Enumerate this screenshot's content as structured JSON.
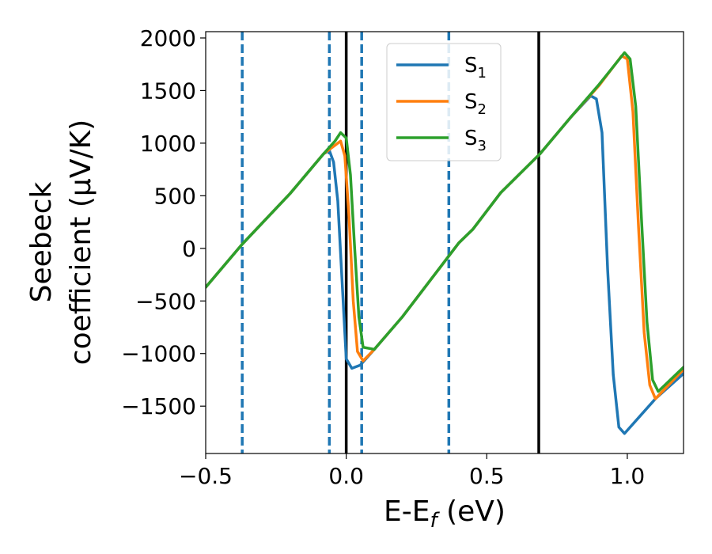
{
  "chart_data": {
    "type": "line",
    "xlabel": "E-E",
    "xlabel_sub": "f",
    "xlabel_unit": " (eV)",
    "ylabel_line1": "Seebeck",
    "ylabel_line2": "coefficient  (μV/K)",
    "xlim": [
      -0.5,
      1.2
    ],
    "ylim": [
      -1950,
      2060
    ],
    "xticks": [
      -0.5,
      0.0,
      0.5,
      1.0
    ],
    "xtick_labels": [
      "−0.5",
      "0.0",
      "0.5",
      "1.0"
    ],
    "yticks": [
      -1500,
      -1000,
      -500,
      0,
      500,
      1000,
      1500,
      2000
    ],
    "ytick_labels": [
      "−1500",
      "−1000",
      "−500",
      "0",
      "500",
      "1000",
      "1500",
      "2000"
    ],
    "grid": false,
    "legend_position": "top-center",
    "series": [
      {
        "name": "S",
        "sub": "1",
        "color": "#1f77b4",
        "points": [
          [
            -0.5,
            -370
          ],
          [
            -0.37,
            40
          ],
          [
            -0.2,
            520
          ],
          [
            -0.08,
            900
          ],
          [
            -0.06,
            930
          ],
          [
            -0.045,
            820
          ],
          [
            -0.03,
            450
          ],
          [
            -0.015,
            -300
          ],
          [
            0.0,
            -1050
          ],
          [
            0.02,
            -1140
          ],
          [
            0.05,
            -1110
          ],
          [
            0.1,
            -960
          ],
          [
            0.2,
            -650
          ],
          [
            0.3,
            -300
          ],
          [
            0.4,
            50
          ],
          [
            0.45,
            180
          ],
          [
            0.55,
            530
          ],
          [
            0.69,
            900
          ],
          [
            0.8,
            1250
          ],
          [
            0.87,
            1450
          ],
          [
            0.89,
            1420
          ],
          [
            0.91,
            1100
          ],
          [
            0.93,
            -200
          ],
          [
            0.95,
            -1200
          ],
          [
            0.97,
            -1700
          ],
          [
            0.99,
            -1760
          ],
          [
            1.05,
            -1580
          ],
          [
            1.1,
            -1430
          ],
          [
            1.2,
            -1190
          ]
        ]
      },
      {
        "name": "S",
        "sub": "2",
        "color": "#ff7f0e",
        "points": [
          [
            -0.5,
            -370
          ],
          [
            -0.37,
            40
          ],
          [
            -0.2,
            520
          ],
          [
            -0.08,
            900
          ],
          [
            -0.04,
            980
          ],
          [
            -0.02,
            1020
          ],
          [
            -0.005,
            880
          ],
          [
            0.01,
            300
          ],
          [
            0.025,
            -500
          ],
          [
            0.04,
            -980
          ],
          [
            0.06,
            -1070
          ],
          [
            0.1,
            -960
          ],
          [
            0.2,
            -650
          ],
          [
            0.3,
            -300
          ],
          [
            0.4,
            50
          ],
          [
            0.45,
            180
          ],
          [
            0.55,
            530
          ],
          [
            0.69,
            900
          ],
          [
            0.8,
            1250
          ],
          [
            0.9,
            1550
          ],
          [
            0.98,
            1830
          ],
          [
            1.0,
            1800
          ],
          [
            1.02,
            1300
          ],
          [
            1.04,
            200
          ],
          [
            1.06,
            -800
          ],
          [
            1.08,
            -1300
          ],
          [
            1.1,
            -1430
          ],
          [
            1.2,
            -1150
          ]
        ]
      },
      {
        "name": "S",
        "sub": "3",
        "color": "#2ca02c",
        "points": [
          [
            -0.5,
            -370
          ],
          [
            -0.37,
            40
          ],
          [
            -0.2,
            520
          ],
          [
            -0.08,
            900
          ],
          [
            -0.04,
            1020
          ],
          [
            -0.02,
            1100
          ],
          [
            0.0,
            1050
          ],
          [
            0.015,
            700
          ],
          [
            0.03,
            0
          ],
          [
            0.045,
            -650
          ],
          [
            0.06,
            -940
          ],
          [
            0.1,
            -960
          ],
          [
            0.2,
            -650
          ],
          [
            0.3,
            -300
          ],
          [
            0.4,
            50
          ],
          [
            0.45,
            180
          ],
          [
            0.55,
            530
          ],
          [
            0.69,
            900
          ],
          [
            0.8,
            1250
          ],
          [
            0.9,
            1560
          ],
          [
            0.99,
            1860
          ],
          [
            1.01,
            1800
          ],
          [
            1.03,
            1350
          ],
          [
            1.05,
            300
          ],
          [
            1.07,
            -700
          ],
          [
            1.09,
            -1250
          ],
          [
            1.11,
            -1360
          ],
          [
            1.2,
            -1130
          ]
        ]
      }
    ],
    "vlines": [
      {
        "x": -0.37,
        "style": "dashed",
        "color": "#1f77b4"
      },
      {
        "x": -0.06,
        "style": "dashed",
        "color": "#1f77b4"
      },
      {
        "x": 0.055,
        "style": "dashed",
        "color": "#1f77b4"
      },
      {
        "x": 0.365,
        "style": "dashed",
        "color": "#1f77b4"
      },
      {
        "x": 0.0,
        "style": "solid",
        "color": "#000000"
      },
      {
        "x": 0.685,
        "style": "solid",
        "color": "#000000"
      }
    ]
  }
}
